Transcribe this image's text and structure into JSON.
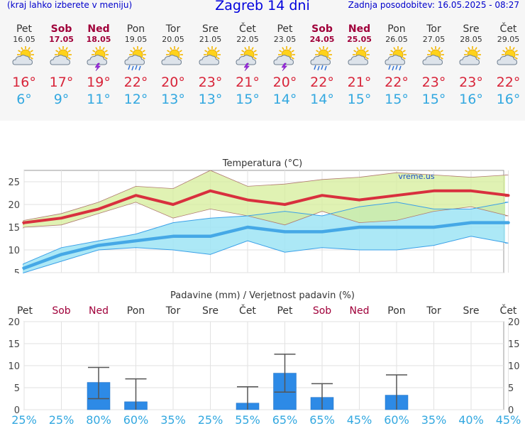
{
  "header": {
    "left_note": "(kraj lahko izberete v meniju)",
    "title": "Zagreb 14 dni",
    "updated": "Zadnja posodobitev: 16.05.2025 - 08:27"
  },
  "colors": {
    "max_temp": "#d8253a",
    "min_temp": "#33a8e0",
    "weekend": "#a0003a",
    "bar": "#2d8ae6",
    "band_max": "#d6ee9a",
    "band_min": "#9ee4f4"
  },
  "days": [
    {
      "name": "Pet",
      "date": "16.05",
      "weekend": false,
      "icon": "sun-cloud-icon",
      "tmax": "16°",
      "tmin": "6°"
    },
    {
      "name": "Sob",
      "date": "17.05",
      "weekend": true,
      "icon": "sun-cloud-icon",
      "tmax": "17°",
      "tmin": "9°"
    },
    {
      "name": "Ned",
      "date": "18.05",
      "weekend": true,
      "icon": "sun-thunder-icon",
      "tmax": "19°",
      "tmin": "11°"
    },
    {
      "name": "Pon",
      "date": "19.05",
      "weekend": false,
      "icon": "sun-rain-icon",
      "tmax": "22°",
      "tmin": "12°"
    },
    {
      "name": "Tor",
      "date": "20.05",
      "weekend": false,
      "icon": "sun-cloud-icon",
      "tmax": "20°",
      "tmin": "13°"
    },
    {
      "name": "Sre",
      "date": "21.05",
      "weekend": false,
      "icon": "sun-cloud-icon",
      "tmax": "23°",
      "tmin": "13°"
    },
    {
      "name": "Čet",
      "date": "22.05",
      "weekend": false,
      "icon": "sun-thunder-icon",
      "tmax": "21°",
      "tmin": "15°"
    },
    {
      "name": "Pet",
      "date": "23.05",
      "weekend": false,
      "icon": "sun-thunder-icon",
      "tmax": "20°",
      "tmin": "14°"
    },
    {
      "name": "Sob",
      "date": "24.05",
      "weekend": true,
      "icon": "sun-rain-icon",
      "tmax": "22°",
      "tmin": "14°"
    },
    {
      "name": "Ned",
      "date": "25.05",
      "weekend": true,
      "icon": "sun-cloud-icon",
      "tmax": "21°",
      "tmin": "15°"
    },
    {
      "name": "Pon",
      "date": "26.05",
      "weekend": false,
      "icon": "sun-rain-icon",
      "tmax": "22°",
      "tmin": "15°"
    },
    {
      "name": "Tor",
      "date": "27.05",
      "weekend": false,
      "icon": "sun-cloud-icon",
      "tmax": "23°",
      "tmin": "15°"
    },
    {
      "name": "Sre",
      "date": "28.05",
      "weekend": false,
      "icon": "sun-cloud-icon",
      "tmax": "23°",
      "tmin": "16°"
    },
    {
      "name": "Čet",
      "date": "29.05",
      "weekend": false,
      "icon": "sun-cloud-icon",
      "tmax": "22°",
      "tmin": "16°"
    }
  ],
  "chart_data": [
    {
      "type": "line",
      "title": "Temperatura (°C)",
      "watermark": "vreme.us",
      "ylim": [
        5,
        27.5
      ],
      "yticks": [
        5,
        10,
        15,
        20,
        25
      ],
      "grid": true,
      "x": [
        1,
        2,
        3,
        4,
        5,
        6,
        7,
        8,
        9,
        10,
        11,
        12,
        13,
        14
      ],
      "series": [
        {
          "values": [
            16,
            17,
            19,
            22,
            20,
            23,
            21,
            20,
            22,
            21,
            22,
            23,
            23,
            22
          ]
        },
        {
          "values": [
            6,
            9,
            11,
            12,
            13,
            13,
            15,
            14,
            14,
            15,
            15,
            15,
            16,
            16
          ]
        }
      ],
      "band_max_upper": [
        16.5,
        18,
        20.5,
        24,
        23.5,
        27.5,
        24,
        24.5,
        25.5,
        26,
        27,
        26.5,
        26,
        26.5
      ],
      "band_max_lower": [
        15,
        15.5,
        18,
        20.5,
        17,
        19,
        17.5,
        15.5,
        18.5,
        16,
        16.5,
        18.5,
        19.5,
        17.5
      ],
      "band_min_upper": [
        7,
        10.5,
        12,
        13.5,
        16,
        17,
        17.5,
        18.5,
        17.5,
        19.5,
        20.5,
        19,
        19,
        20.5
      ],
      "band_min_lower": [
        5,
        7.5,
        10,
        10.5,
        10,
        9,
        12,
        9.5,
        10.5,
        10,
        10,
        11,
        13,
        11.5
      ]
    },
    {
      "type": "bar",
      "title": "Padavine (mm) / Verjetnost padavin (%)",
      "categories": [
        "Pet",
        "Sob",
        "Ned",
        "Pon",
        "Tor",
        "Sre",
        "Čet",
        "Pet",
        "Sob",
        "Ned",
        "Pon",
        "Tor",
        "Sre",
        "Čet"
      ],
      "weekend": [
        false,
        true,
        true,
        false,
        false,
        false,
        false,
        false,
        true,
        true,
        false,
        false,
        false,
        false
      ],
      "values": [
        0,
        0,
        6.2,
        1.8,
        0,
        0,
        1.5,
        8.3,
        2.8,
        0,
        3.3,
        0,
        0,
        0
      ],
      "error_low": [
        0,
        0,
        2.5,
        0,
        0,
        0,
        0,
        4,
        0,
        0,
        0,
        0,
        0,
        0
      ],
      "error_high": [
        0,
        0,
        9.6,
        7,
        0,
        0,
        5.2,
        12.6,
        5.9,
        0,
        7.9,
        0,
        0,
        0
      ],
      "probability": [
        "25%",
        "25%",
        "80%",
        "60%",
        "35%",
        "25%",
        "55%",
        "65%",
        "65%",
        "45%",
        "60%",
        "35%",
        "40%",
        "45%"
      ],
      "ylim": [
        0,
        20
      ],
      "yticks": [
        0,
        5,
        10,
        15,
        20
      ],
      "grid": true
    }
  ]
}
